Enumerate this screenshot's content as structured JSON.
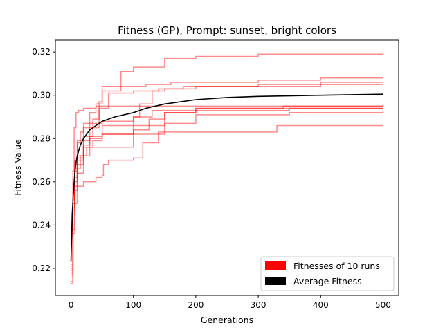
{
  "chart_data": {
    "type": "line",
    "title": "Fitness (GP), Prompt: sunset, bright colors",
    "xlabel": "Generations",
    "ylabel": "Fitness Value",
    "xlim": [
      -25,
      525
    ],
    "ylim": [
      0.2075,
      0.3255
    ],
    "xticks": [
      0,
      100,
      200,
      300,
      400,
      500
    ],
    "yticks": [
      0.22,
      0.24,
      0.26,
      0.28,
      0.3,
      0.32
    ],
    "grid": false,
    "legend_position": "lower-right",
    "colors": {
      "runs": "#ff0000",
      "average": "#000000"
    },
    "legend": [
      {
        "label": "Fitnesses of 10 runs",
        "color": "#ff0000"
      },
      {
        "label": "Average Fitness",
        "color": "#000000"
      }
    ],
    "series": [
      {
        "x": [
          0,
          3,
          6,
          10,
          15,
          20,
          30,
          40,
          50,
          80,
          100,
          150,
          200,
          300,
          500
        ],
        "y": [
          0.214,
          0.248,
          0.268,
          0.278,
          0.283,
          0.287,
          0.292,
          0.296,
          0.304,
          0.311,
          0.313,
          0.317,
          0.318,
          0.319,
          0.32
        ]
      },
      {
        "x": [
          0,
          3,
          6,
          10,
          20,
          30,
          45,
          50,
          80,
          120,
          160,
          200,
          300,
          400,
          500
        ],
        "y": [
          0.219,
          0.255,
          0.265,
          0.27,
          0.279,
          0.285,
          0.297,
          0.302,
          0.304,
          0.305,
          0.306,
          0.306,
          0.307,
          0.308,
          0.308
        ]
      },
      {
        "x": [
          0,
          3,
          6,
          10,
          20,
          35,
          45,
          60,
          100,
          150,
          200,
          300,
          400,
          500
        ],
        "y": [
          0.216,
          0.238,
          0.262,
          0.271,
          0.281,
          0.289,
          0.294,
          0.301,
          0.302,
          0.303,
          0.304,
          0.305,
          0.306,
          0.306
        ]
      },
      {
        "x": [
          0,
          3,
          6,
          10,
          20,
          30,
          50,
          100,
          110,
          130,
          140,
          180,
          250,
          400,
          500
        ],
        "y": [
          0.22,
          0.25,
          0.27,
          0.279,
          0.285,
          0.287,
          0.288,
          0.29,
          0.296,
          0.302,
          0.303,
          0.304,
          0.304,
          0.305,
          0.305
        ]
      },
      {
        "x": [
          0,
          3,
          5,
          8,
          12,
          20,
          40,
          80,
          130,
          200,
          300,
          500
        ],
        "y": [
          0.221,
          0.265,
          0.285,
          0.292,
          0.293,
          0.294,
          0.295,
          0.295,
          0.295,
          0.295,
          0.295,
          0.296
        ]
      },
      {
        "x": [
          0,
          3,
          6,
          10,
          20,
          30,
          50,
          100,
          130,
          200,
          340,
          500
        ],
        "y": [
          0.222,
          0.252,
          0.266,
          0.272,
          0.277,
          0.281,
          0.286,
          0.29,
          0.293,
          0.294,
          0.295,
          0.295
        ]
      },
      {
        "x": [
          0,
          3,
          6,
          10,
          20,
          30,
          50,
          100,
          150,
          200,
          350,
          500
        ],
        "y": [
          0.218,
          0.247,
          0.26,
          0.268,
          0.276,
          0.28,
          0.282,
          0.286,
          0.292,
          0.293,
          0.294,
          0.294
        ]
      },
      {
        "x": [
          0,
          3,
          6,
          10,
          20,
          30,
          50,
          100,
          150,
          200,
          350,
          500
        ],
        "y": [
          0.217,
          0.245,
          0.256,
          0.264,
          0.272,
          0.276,
          0.276,
          0.282,
          0.287,
          0.291,
          0.292,
          0.293
        ]
      },
      {
        "x": [
          0,
          3,
          6,
          10,
          20,
          40,
          50,
          52,
          60,
          100,
          115,
          140,
          200,
          320,
          330,
          500
        ],
        "y": [
          0.213,
          0.236,
          0.25,
          0.258,
          0.26,
          0.262,
          0.263,
          0.268,
          0.27,
          0.271,
          0.278,
          0.283,
          0.283,
          0.283,
          0.286,
          0.286
        ]
      },
      {
        "x": [
          0,
          3,
          6,
          10,
          15,
          25,
          35,
          50,
          100,
          125,
          150,
          200,
          300,
          500
        ],
        "y": [
          0.222,
          0.25,
          0.258,
          0.266,
          0.272,
          0.276,
          0.279,
          0.282,
          0.284,
          0.289,
          0.292,
          0.294,
          0.294,
          0.294
        ]
      }
    ],
    "average": {
      "x": [
        0,
        2,
        4,
        6,
        8,
        10,
        15,
        20,
        30,
        40,
        50,
        70,
        100,
        120,
        150,
        200,
        250,
        300,
        400,
        500
      ],
      "y": [
        0.223,
        0.245,
        0.256,
        0.264,
        0.269,
        0.272,
        0.277,
        0.28,
        0.284,
        0.286,
        0.288,
        0.29,
        0.292,
        0.294,
        0.296,
        0.298,
        0.299,
        0.2995,
        0.3,
        0.3005
      ]
    }
  }
}
